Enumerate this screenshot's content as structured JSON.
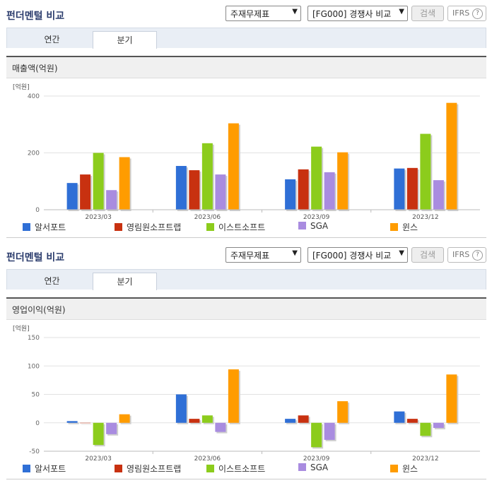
{
  "colors": {
    "title": "#2d3e6e",
    "series": [
      "#2f6fd6",
      "#c83110",
      "#8ccc1c",
      "#a98ce0",
      "#ff9c00"
    ]
  },
  "panels": [
    {
      "title": "펀더멘털 비교",
      "select1": "주재무제표",
      "select2": "[FG000] 경쟁사 비교",
      "search_label": "검색",
      "ifrs_label": "IFRS",
      "help_icon": "?",
      "tabs": [
        "연간",
        "분기"
      ],
      "active_tab": 1,
      "chart_header": "매출액(억원)",
      "unit": "[억원]",
      "legend": [
        "알서포트",
        "영림원소프트랩",
        "이스트소프트",
        "SGA",
        "윈스"
      ],
      "chart_data": {
        "type": "bar",
        "categories": [
          "2023/03",
          "2023/06",
          "2023/09",
          "2023/12"
        ],
        "series": [
          {
            "name": "알서포트",
            "values": [
              94,
              154,
              107,
              145
            ]
          },
          {
            "name": "영림원소프트랩",
            "values": [
              124,
              139,
              142,
              147
            ]
          },
          {
            "name": "이스트소프트",
            "values": [
              200,
              234,
              222,
              267
            ]
          },
          {
            "name": "SGA",
            "values": [
              69,
              124,
              132,
              104
            ]
          },
          {
            "name": "윈스",
            "values": [
              185,
              304,
              202,
              376
            ]
          }
        ],
        "ylim": [
          0,
          400
        ],
        "yticks": [
          0,
          200,
          400
        ],
        "grid": true,
        "legend_position": "bottom"
      }
    },
    {
      "title": "펀더멘털 비교",
      "select1": "주재무제표",
      "select2": "[FG000] 경쟁사 비교",
      "search_label": "검색",
      "ifrs_label": "IFRS",
      "help_icon": "?",
      "tabs": [
        "연간",
        "분기"
      ],
      "active_tab": 1,
      "chart_header": "영업이익(억원)",
      "unit": "[억원]",
      "legend": [
        "알서포트",
        "영림원소프트랩",
        "이스트소프트",
        "SGA",
        "윈스"
      ],
      "chart_data": {
        "type": "bar",
        "categories": [
          "2023/03",
          "2023/06",
          "2023/09",
          "2023/12"
        ],
        "series": [
          {
            "name": "알서포트",
            "values": [
              3,
              50,
              7,
              20
            ]
          },
          {
            "name": "영림원소프트랩",
            "values": [
              0,
              7,
              13,
              7
            ]
          },
          {
            "name": "이스트소프트",
            "values": [
              -39,
              13,
              -43,
              -23
            ]
          },
          {
            "name": "SGA",
            "values": [
              -20,
              -16,
              -30,
              -9
            ]
          },
          {
            "name": "윈스",
            "values": [
              15,
              94,
              38,
              85
            ]
          }
        ],
        "ylim": [
          -50,
          150
        ],
        "yticks": [
          -50,
          0,
          50,
          100,
          150
        ],
        "grid": true,
        "legend_position": "bottom"
      }
    }
  ]
}
